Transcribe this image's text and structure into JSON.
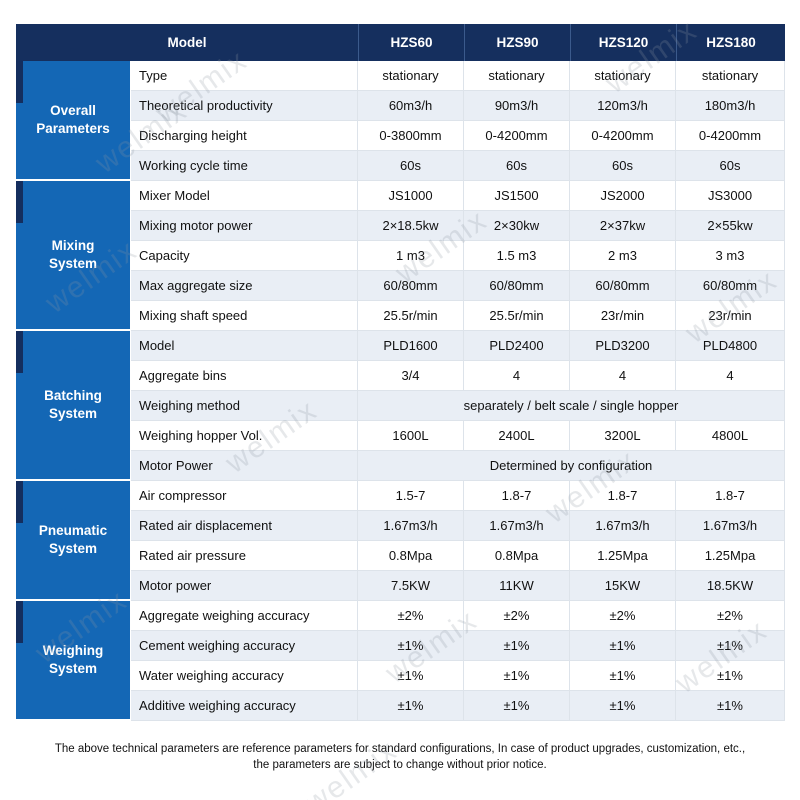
{
  "header": {
    "model_label": "Model",
    "columns": [
      "HZS60",
      "HZS90",
      "HZS120",
      "HZS180"
    ]
  },
  "groups": [
    {
      "label": "Overall Parameters",
      "rows": [
        {
          "param": "Type",
          "values": [
            "stationary",
            "stationary",
            "stationary",
            "stationary"
          ]
        },
        {
          "param": "Theoretical productivity",
          "values": [
            "60m3/h",
            "90m3/h",
            "120m3/h",
            "180m3/h"
          ]
        },
        {
          "param": "Discharging height",
          "values": [
            "0-3800mm",
            "0-4200mm",
            "0-4200mm",
            "0-4200mm"
          ]
        },
        {
          "param": "Working cycle time",
          "values": [
            "60s",
            "60s",
            "60s",
            "60s"
          ]
        }
      ]
    },
    {
      "label": "Mixing System",
      "rows": [
        {
          "param": "Mixer Model",
          "values": [
            "JS1000",
            "JS1500",
            "JS2000",
            "JS3000"
          ]
        },
        {
          "param": "Mixing motor power",
          "values": [
            "2×18.5kw",
            "2×30kw",
            "2×37kw",
            "2×55kw"
          ]
        },
        {
          "param": "Capacity",
          "values": [
            "1 m3",
            "1.5 m3",
            "2 m3",
            "3 m3"
          ]
        },
        {
          "param": "Max aggregate size",
          "values": [
            "60/80mm",
            "60/80mm",
            "60/80mm",
            "60/80mm"
          ]
        },
        {
          "param": "Mixing shaft speed",
          "values": [
            "25.5r/min",
            "25.5r/min",
            "23r/min",
            "23r/min"
          ]
        }
      ]
    },
    {
      "label": "Batching System",
      "rows": [
        {
          "param": "Model",
          "values": [
            "PLD1600",
            "PLD2400",
            "PLD3200",
            "PLD4800"
          ]
        },
        {
          "param": "Aggregate bins",
          "values": [
            "3/4",
            "4",
            "4",
            "4"
          ]
        },
        {
          "param": "Weighing method",
          "span": "separately  / belt scale / single hopper"
        },
        {
          "param": "Weighing hopper Vol.",
          "values": [
            "1600L",
            "2400L",
            "3200L",
            "4800L"
          ]
        },
        {
          "param": "Motor Power",
          "span": "Determined by configuration"
        }
      ]
    },
    {
      "label": "Pneumatic System",
      "rows": [
        {
          "param": "Air compressor",
          "values": [
            "1.5-7",
            "1.8-7",
            "1.8-7",
            "1.8-7"
          ]
        },
        {
          "param": "Rated air displacement",
          "values": [
            "1.67m3/h",
            "1.67m3/h",
            "1.67m3/h",
            "1.67m3/h"
          ]
        },
        {
          "param": "Rated air pressure",
          "values": [
            "0.8Mpa",
            "0.8Mpa",
            "1.25Mpa",
            "1.25Mpa"
          ]
        },
        {
          "param": "Motor power",
          "values": [
            "7.5KW",
            "11KW",
            "15KW",
            "18.5KW"
          ]
        }
      ]
    },
    {
      "label": "Weighing System",
      "rows": [
        {
          "param": "Aggregate weighing accuracy",
          "values": [
            "±2%",
            "±2%",
            "±2%",
            "±2%"
          ]
        },
        {
          "param": "Cement weighing accuracy",
          "values": [
            "±1%",
            "±1%",
            "±1%",
            "±1%"
          ]
        },
        {
          "param": "Water weighing accuracy",
          "values": [
            "±1%",
            "±1%",
            "±1%",
            "±1%"
          ]
        },
        {
          "param": "Additive weighing accuracy",
          "values": [
            "±1%",
            "±1%",
            "±1%",
            "±1%"
          ]
        }
      ]
    }
  ],
  "footer": {
    "line1": "The above technical parameters are reference parameters for standard configurations, In case of  product upgrades, customization, etc.,",
    "line2": "the parameters are subject to change without prior notice."
  },
  "watermark": "welmix",
  "colors": {
    "header_bg": "#152f5e",
    "group_bg": "#1467b5",
    "alt_row_bg": "#e9eef5"
  }
}
